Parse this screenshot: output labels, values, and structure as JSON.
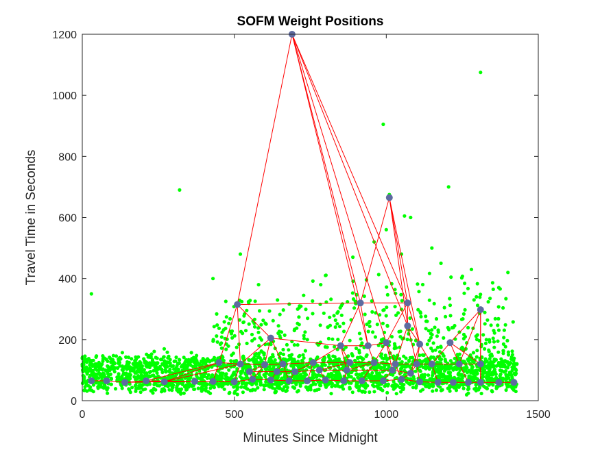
{
  "chart_data": {
    "type": "scatter",
    "title": "SOFM Weight Positions",
    "xlabel": "Minutes Since Midnight",
    "ylabel": "Travel Time in Seconds",
    "xlim": [
      0,
      1500
    ],
    "ylim": [
      0,
      1200
    ],
    "xticks": [
      0,
      500,
      1000,
      1500
    ],
    "yticks": [
      0,
      200,
      400,
      600,
      800,
      1000,
      1200
    ],
    "grid": false,
    "legend": "none",
    "colors": {
      "data": "#00ff00",
      "neurons": "#5e6aa0",
      "links": "#ff0000",
      "axes": "#262626"
    },
    "data_outliers": [
      [
        320,
        690
      ],
      [
        990,
        905
      ],
      [
        1205,
        700
      ],
      [
        1310,
        1075
      ],
      [
        1010,
        675
      ],
      [
        1060,
        605
      ],
      [
        1080,
        600
      ],
      [
        520,
        480
      ],
      [
        890,
        470
      ],
      [
        1050,
        480
      ],
      [
        1280,
        430
      ],
      [
        1370,
        370
      ],
      [
        1400,
        420
      ],
      [
        1180,
        450
      ],
      [
        580,
        380
      ],
      [
        800,
        410
      ],
      [
        430,
        400
      ],
      [
        960,
        520
      ],
      [
        1000,
        560
      ],
      [
        1150,
        500
      ],
      [
        30,
        350
      ]
    ],
    "neurons": [
      [
        690,
        1200
      ],
      [
        1010,
        665
      ],
      [
        510,
        315
      ],
      [
        915,
        320
      ],
      [
        1070,
        320
      ],
      [
        1310,
        298
      ],
      [
        1070,
        245
      ],
      [
        620,
        205
      ],
      [
        850,
        180
      ],
      [
        1000,
        190
      ],
      [
        1110,
        185
      ],
      [
        1210,
        190
      ],
      [
        940,
        180
      ],
      [
        450,
        125
      ],
      [
        520,
        120
      ],
      [
        600,
        118
      ],
      [
        660,
        120
      ],
      [
        760,
        125
      ],
      [
        880,
        125
      ],
      [
        960,
        125
      ],
      [
        1030,
        120
      ],
      [
        1100,
        120
      ],
      [
        1150,
        120
      ],
      [
        1240,
        120
      ],
      [
        1310,
        120
      ],
      [
        30,
        65
      ],
      [
        80,
        65
      ],
      [
        140,
        60
      ],
      [
        210,
        65
      ],
      [
        270,
        62
      ],
      [
        370,
        63
      ],
      [
        430,
        63
      ],
      [
        500,
        62
      ],
      [
        560,
        70
      ],
      [
        620,
        68
      ],
      [
        680,
        65
      ],
      [
        740,
        65
      ],
      [
        800,
        68
      ],
      [
        860,
        65
      ],
      [
        920,
        65
      ],
      [
        990,
        65
      ],
      [
        1050,
        70
      ],
      [
        1110,
        62
      ],
      [
        1170,
        60
      ],
      [
        1220,
        60
      ],
      [
        1270,
        60
      ],
      [
        1310,
        60
      ],
      [
        1370,
        60
      ],
      [
        1420,
        60
      ],
      [
        700,
        95
      ],
      [
        780,
        100
      ],
      [
        870,
        100
      ],
      [
        1020,
        100
      ],
      [
        1080,
        90
      ],
      [
        550,
        95
      ],
      [
        640,
        95
      ]
    ],
    "links": [
      [
        0,
        2
      ],
      [
        0,
        3
      ],
      [
        0,
        4
      ],
      [
        0,
        6
      ],
      [
        0,
        12
      ],
      [
        0,
        9
      ],
      [
        1,
        4
      ],
      [
        1,
        6
      ],
      [
        1,
        10
      ],
      [
        1,
        3
      ],
      [
        2,
        3
      ],
      [
        2,
        7
      ],
      [
        2,
        13
      ],
      [
        2,
        14
      ],
      [
        3,
        4
      ],
      [
        3,
        8
      ],
      [
        3,
        12
      ],
      [
        4,
        6
      ],
      [
        4,
        9
      ],
      [
        4,
        10
      ],
      [
        5,
        11
      ],
      [
        5,
        24
      ],
      [
        5,
        23
      ],
      [
        5,
        46
      ],
      [
        6,
        10
      ],
      [
        6,
        20
      ],
      [
        7,
        8
      ],
      [
        7,
        14
      ],
      [
        7,
        15
      ],
      [
        7,
        16
      ],
      [
        8,
        12
      ],
      [
        8,
        17
      ],
      [
        8,
        18
      ],
      [
        9,
        12
      ],
      [
        9,
        19
      ],
      [
        9,
        20
      ],
      [
        10,
        21
      ],
      [
        10,
        22
      ],
      [
        11,
        22
      ],
      [
        11,
        23
      ],
      [
        13,
        14
      ],
      [
        14,
        15
      ],
      [
        15,
        16
      ],
      [
        16,
        17
      ],
      [
        17,
        18
      ],
      [
        18,
        19
      ],
      [
        19,
        20
      ],
      [
        20,
        21
      ],
      [
        21,
        22
      ],
      [
        22,
        23
      ],
      [
        23,
        24
      ],
      [
        25,
        26
      ],
      [
        26,
        27
      ],
      [
        27,
        28
      ],
      [
        28,
        29
      ],
      [
        29,
        30
      ],
      [
        30,
        31
      ],
      [
        31,
        32
      ],
      [
        32,
        33
      ],
      [
        33,
        34
      ],
      [
        34,
        35
      ],
      [
        35,
        36
      ],
      [
        36,
        37
      ],
      [
        37,
        38
      ],
      [
        38,
        39
      ],
      [
        39,
        40
      ],
      [
        40,
        41
      ],
      [
        41,
        42
      ],
      [
        42,
        43
      ],
      [
        43,
        44
      ],
      [
        44,
        45
      ],
      [
        45,
        46
      ],
      [
        46,
        47
      ],
      [
        47,
        48
      ],
      [
        13,
        31
      ],
      [
        14,
        32
      ],
      [
        15,
        33
      ],
      [
        16,
        35
      ],
      [
        17,
        36
      ],
      [
        18,
        38
      ],
      [
        19,
        39
      ],
      [
        20,
        41
      ],
      [
        21,
        42
      ],
      [
        22,
        43
      ],
      [
        23,
        45
      ],
      [
        24,
        46
      ],
      [
        49,
        50
      ],
      [
        50,
        51
      ],
      [
        51,
        52
      ],
      [
        52,
        53
      ],
      [
        54,
        55
      ],
      [
        55,
        49
      ],
      [
        49,
        35
      ],
      [
        50,
        37
      ],
      [
        51,
        38
      ],
      [
        52,
        40
      ],
      [
        53,
        41
      ],
      [
        54,
        33
      ],
      [
        55,
        34
      ],
      [
        29,
        13
      ],
      [
        28,
        13
      ],
      [
        29,
        14
      ],
      [
        28,
        32
      ],
      [
        27,
        29
      ],
      [
        8,
        51
      ],
      [
        9,
        52
      ],
      [
        15,
        54
      ],
      [
        16,
        55
      ],
      [
        17,
        49
      ],
      [
        18,
        50
      ],
      [
        19,
        51
      ],
      [
        20,
        52
      ],
      [
        21,
        53
      ],
      [
        33,
        54
      ],
      [
        12,
        19
      ],
      [
        6,
        21
      ],
      [
        10,
        53
      ],
      [
        11,
        24
      ]
    ]
  }
}
